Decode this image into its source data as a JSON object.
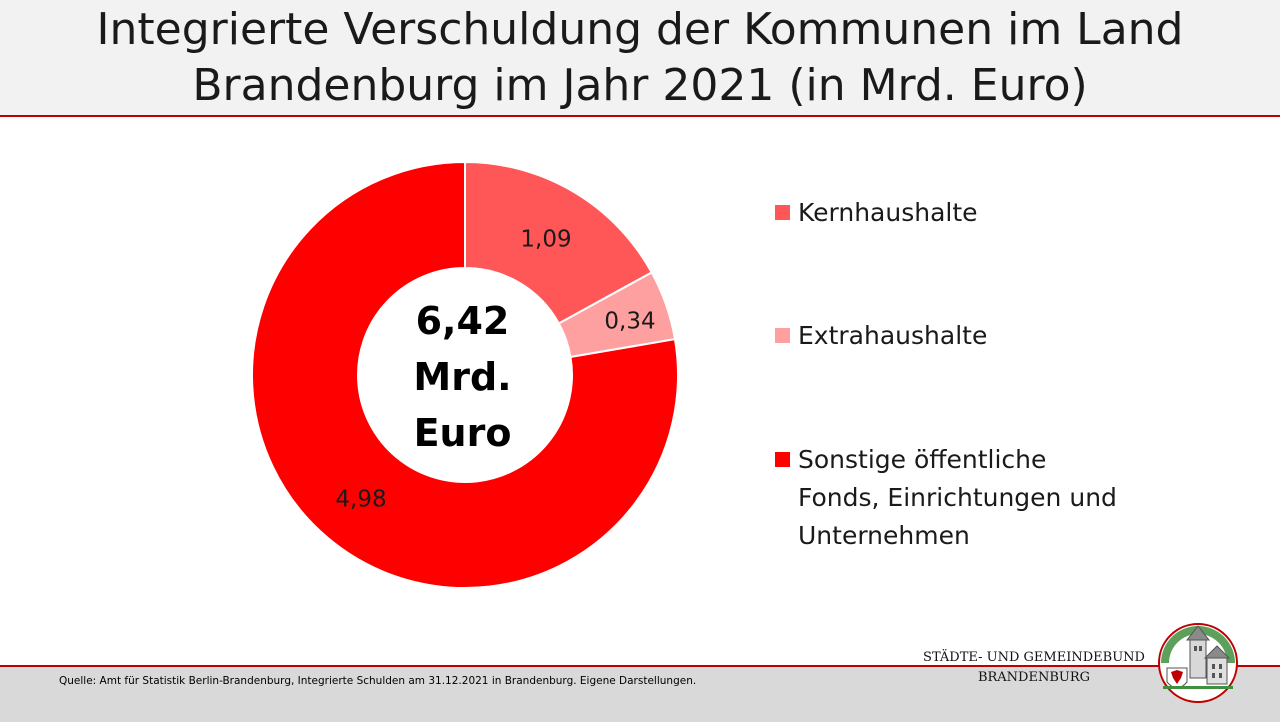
{
  "header": {
    "title_line1": "Integrierte  Verschuldung der Kommunen im Land",
    "title_line2": "Brandenburg im Jahr 2021 (in Mrd. Euro)"
  },
  "chart_data": {
    "type": "pie",
    "donut": true,
    "categories": [
      "Kernhaushalte",
      "Extrahaushalte",
      "Sonstige öffentliche Fonds, Einrichtungen und Unternehmen"
    ],
    "values": [
      1.09,
      0.34,
      4.98
    ],
    "data_labels": [
      "1,09",
      "0,34",
      "4,98"
    ],
    "colors": [
      "#ff5757",
      "#ffa0a0",
      "#ff0000"
    ],
    "center_text": [
      "6,42",
      "Mrd.",
      "Euro"
    ],
    "legend_position": "right",
    "start_angle": "top, clockwise"
  },
  "legend": {
    "items": [
      {
        "label": "Kernhaushalte",
        "color": "#ff5757"
      },
      {
        "label": "Extrahaushalte",
        "color": "#ffa0a0"
      },
      {
        "label": "Sonstige öffentliche Fonds, Einrichtungen und Unternehmen",
        "color": "#ff0000"
      }
    ]
  },
  "footer": {
    "source": "Quelle: Amt für Statistik Berlin-Brandenburg, Integrierte Schulden am 31.12.2021 in Brandenburg. Eigene Darstellungen.",
    "org_line1": "STÄDTE-  UND GEMEINDEBUND",
    "org_line2": "BRANDENBURG"
  }
}
